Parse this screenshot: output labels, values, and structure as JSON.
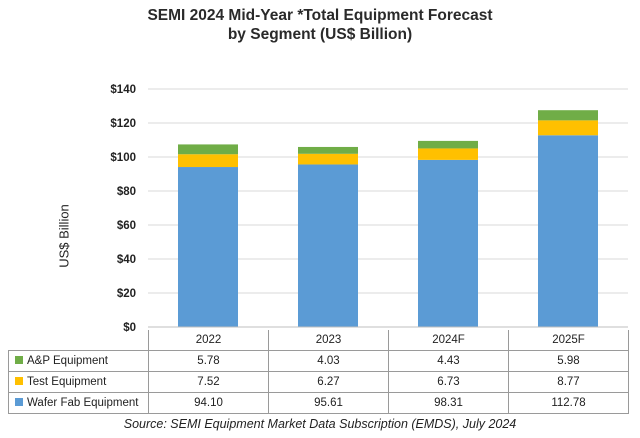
{
  "chart_data": {
    "type": "bar",
    "stacked": true,
    "title": [
      "SEMI 2024 Mid-Year *Total Equipment Forecast",
      "by Segment (US$ Billion)"
    ],
    "ylabel": "US$ Billion",
    "ylim": [
      0,
      140
    ],
    "yticks": [
      "$0",
      "$20",
      "$40",
      "$60",
      "$80",
      "$100",
      "$120",
      "$140"
    ],
    "grid": true,
    "categories": [
      "2022",
      "2023",
      "2024F",
      "2025F"
    ],
    "series": [
      {
        "name": "Wafer Fab Equipment",
        "color": "#5b9bd5",
        "values": [
          94.1,
          95.61,
          98.31,
          112.78
        ],
        "labels": [
          "94.10",
          "95.61",
          "98.31",
          "112.78"
        ]
      },
      {
        "name": "Test Equipment",
        "color": "#ffc000",
        "values": [
          7.52,
          6.27,
          6.73,
          8.77
        ],
        "labels": [
          "7.52",
          "6.27",
          "6.73",
          "8.77"
        ]
      },
      {
        "name": "A&P Equipment",
        "color": "#70ad47",
        "values": [
          5.78,
          4.03,
          4.43,
          5.98
        ],
        "labels": [
          "5.78",
          "4.03",
          "4.43",
          "5.98"
        ]
      }
    ]
  },
  "source": "Source: SEMI Equipment Market Data Subscription (EMDS), July 2024"
}
